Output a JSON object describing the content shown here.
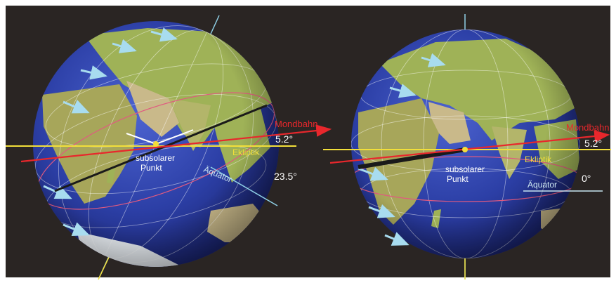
{
  "colors": {
    "background": "#2a2523",
    "ocean": "#2a3fa0",
    "land": "#9fb257",
    "ecliptic": "#f2df3a",
    "moon_orbit": "#e8272c",
    "axis": "#9fd6ea",
    "equator_line": "#c8e6f2",
    "label_white": "#ffffff",
    "label_yellow": "#f2df3a",
    "label_red": "#e8272c"
  },
  "left_globe": {
    "labels": {
      "moon_orbit": "Mondbahn",
      "moon_angle": "5.2°",
      "ecliptic": "Ekliptik",
      "subsolar": "subsolarer",
      "subsolar_2": "Punkt",
      "equator": "Äquator",
      "tilt_angle": "23.5°"
    }
  },
  "right_globe": {
    "labels": {
      "moon_orbit": "Mondbahn",
      "moon_angle": "5.2°",
      "ecliptic": "Ekliptik",
      "subsolar": "subsolarer",
      "subsolar_2": "Punkt",
      "equator": "Äquator",
      "tilt_angle": "0°"
    }
  }
}
